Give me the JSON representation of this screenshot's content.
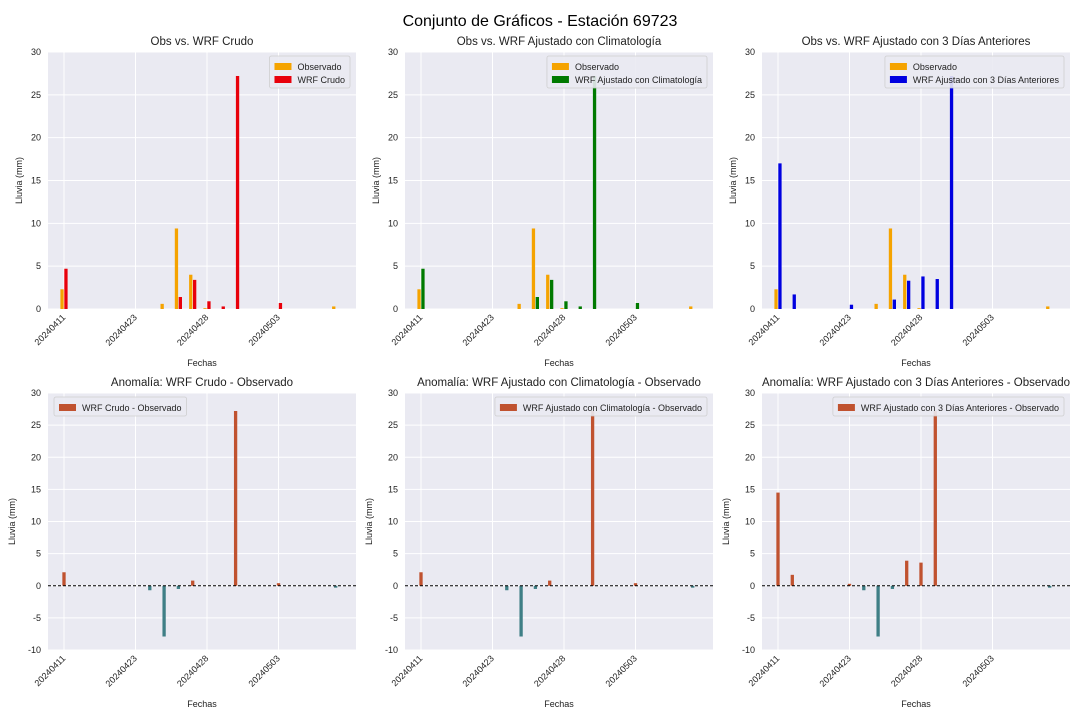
{
  "suptitle": "Conjunto de Gráficos - Estación 69723",
  "colors": {
    "observado": "#f5a300",
    "wrf_crudo": "#e8000b",
    "wrf_clim": "#007a00",
    "wrf_3dias": "#0000e0",
    "anom_pos": "#c0522f",
    "anom_neg": "#3f7f86",
    "axes_bg": "#eaeaf2",
    "grid": "#ffffff"
  },
  "chart_data": [
    {
      "type": "bar",
      "title": "Obs vs. WRF Crudo",
      "xlabel": "Fechas",
      "ylabel": "Lluvia (mm)",
      "ylim": [
        0,
        30
      ],
      "yticks": [
        0,
        5,
        10,
        15,
        20,
        25,
        30
      ],
      "xticks": [
        "20240411",
        "20240423",
        "20240428",
        "20240503"
      ],
      "legend_position": "upper-right",
      "series": [
        {
          "name": "Observado",
          "color_key": "observado",
          "points": [
            {
              "day": 0,
              "value": 2.3
            },
            {
              "day": 7,
              "value": 0.6
            },
            {
              "day": 8,
              "value": 9.4
            },
            {
              "day": 9,
              "value": 4.0
            },
            {
              "day": 10,
              "value": 0.1
            },
            {
              "day": 19,
              "value": 0.3
            }
          ]
        },
        {
          "name": "WRF Crudo",
          "color_key": "wrf_crudo",
          "points": [
            {
              "day": 0,
              "value": 4.7
            },
            {
              "day": 8,
              "value": 1.4
            },
            {
              "day": 9,
              "value": 3.4
            },
            {
              "day": 10,
              "value": 0.9
            },
            {
              "day": 11,
              "value": 0.3
            },
            {
              "day": 12,
              "value": 27.2
            },
            {
              "day": 15,
              "value": 0.7
            }
          ]
        }
      ]
    },
    {
      "type": "bar",
      "title": "Obs vs. WRF Ajustado con Climatología",
      "xlabel": "Fechas",
      "ylabel": "Lluvia (mm)",
      "ylim": [
        0,
        30
      ],
      "yticks": [
        0,
        5,
        10,
        15,
        20,
        25,
        30
      ],
      "xticks": [
        "20240411",
        "20240423",
        "20240428",
        "20240503"
      ],
      "legend_position": "upper-right",
      "series": [
        {
          "name": "Observado",
          "color_key": "observado",
          "points": [
            {
              "day": 0,
              "value": 2.3
            },
            {
              "day": 7,
              "value": 0.6
            },
            {
              "day": 8,
              "value": 9.4
            },
            {
              "day": 9,
              "value": 4.0
            },
            {
              "day": 10,
              "value": 0.1
            },
            {
              "day": 19,
              "value": 0.3
            }
          ]
        },
        {
          "name": "WRF Ajustado con Climatología",
          "color_key": "wrf_clim",
          "points": [
            {
              "day": 0,
              "value": 4.7
            },
            {
              "day": 8,
              "value": 1.4
            },
            {
              "day": 9,
              "value": 3.4
            },
            {
              "day": 10,
              "value": 0.9
            },
            {
              "day": 11,
              "value": 0.3
            },
            {
              "day": 12,
              "value": 27.2
            },
            {
              "day": 15,
              "value": 0.7
            }
          ]
        }
      ]
    },
    {
      "type": "bar",
      "title": "Obs vs. WRF Ajustado con 3 Días Anteriores",
      "xlabel": "Fechas",
      "ylabel": "Lluvia (mm)",
      "ylim": [
        0,
        30
      ],
      "yticks": [
        0,
        5,
        10,
        15,
        20,
        25,
        30
      ],
      "xticks": [
        "20240411",
        "20240423",
        "20240428",
        "20240503"
      ],
      "legend_position": "upper-right",
      "series": [
        {
          "name": "Observado",
          "color_key": "observado",
          "points": [
            {
              "day": 0,
              "value": 2.3
            },
            {
              "day": 7,
              "value": 0.6
            },
            {
              "day": 8,
              "value": 9.4
            },
            {
              "day": 9,
              "value": 4.0
            },
            {
              "day": 10,
              "value": 0.1
            },
            {
              "day": 19,
              "value": 0.3
            }
          ]
        },
        {
          "name": "WRF Ajustado con 3 Días Anteriores",
          "color_key": "wrf_3dias",
          "points": [
            {
              "day": 0,
              "value": 17.0
            },
            {
              "day": 1,
              "value": 1.7
            },
            {
              "day": 5,
              "value": 0.5
            },
            {
              "day": 8,
              "value": 1.1
            },
            {
              "day": 9,
              "value": 3.3
            },
            {
              "day": 10,
              "value": 3.8
            },
            {
              "day": 11,
              "value": 3.5
            },
            {
              "day": 12,
              "value": 27.2
            }
          ]
        }
      ]
    },
    {
      "type": "bar",
      "title": "Anomalía: WRF Crudo - Observado",
      "xlabel": "Fechas",
      "ylabel": "Lluvia (mm)",
      "ylim": [
        -10,
        30
      ],
      "yticks": [
        -10,
        -5,
        0,
        5,
        10,
        15,
        20,
        25,
        30
      ],
      "xticks": [
        "20240411",
        "20240423",
        "20240428",
        "20240503"
      ],
      "legend_position": "upper-left",
      "zero_line": true,
      "series": [
        {
          "name": "WRF Crudo - Observado",
          "color_key": "anom_pos",
          "points": [
            {
              "day": 0,
              "value": 2.1
            },
            {
              "day": 6,
              "value": -0.7
            },
            {
              "day": 7,
              "value": -7.9
            },
            {
              "day": 8,
              "value": -0.5
            },
            {
              "day": 9,
              "value": 0.8
            },
            {
              "day": 12,
              "value": 27.2
            },
            {
              "day": 15,
              "value": 0.4
            },
            {
              "day": 19,
              "value": -0.3
            }
          ]
        }
      ]
    },
    {
      "type": "bar",
      "title": "Anomalía: WRF Ajustado con Climatología - Observado",
      "xlabel": "Fechas",
      "ylabel": "Lluvia (mm)",
      "ylim": [
        -10,
        30
      ],
      "yticks": [
        -10,
        -5,
        0,
        5,
        10,
        15,
        20,
        25,
        30
      ],
      "xticks": [
        "20240411",
        "20240423",
        "20240428",
        "20240503"
      ],
      "legend_position": "upper-right",
      "zero_line": true,
      "series": [
        {
          "name": "WRF Ajustado con Climatología - Observado",
          "color_key": "anom_pos",
          "points": [
            {
              "day": 0,
              "value": 2.1
            },
            {
              "day": 6,
              "value": -0.7
            },
            {
              "day": 7,
              "value": -7.9
            },
            {
              "day": 8,
              "value": -0.5
            },
            {
              "day": 9,
              "value": 0.8
            },
            {
              "day": 12,
              "value": 27.2
            },
            {
              "day": 15,
              "value": 0.4
            },
            {
              "day": 19,
              "value": -0.3
            }
          ]
        }
      ]
    },
    {
      "type": "bar",
      "title": "Anomalía: WRF Ajustado con 3 Días Anteriores - Observado",
      "xlabel": "Fechas",
      "ylabel": "Lluvia (mm)",
      "ylim": [
        -10,
        30
      ],
      "yticks": [
        -10,
        -5,
        0,
        5,
        10,
        15,
        20,
        25,
        30
      ],
      "xticks": [
        "20240411",
        "20240423",
        "20240428",
        "20240503"
      ],
      "legend_position": "upper-right",
      "zero_line": true,
      "series": [
        {
          "name": "WRF Ajustado con 3 Días Anteriores - Observado",
          "color_key": "anom_pos",
          "points": [
            {
              "day": 0,
              "value": 14.5
            },
            {
              "day": 1,
              "value": 1.7
            },
            {
              "day": 5,
              "value": 0.3
            },
            {
              "day": 6,
              "value": -0.7
            },
            {
              "day": 7,
              "value": -7.9
            },
            {
              "day": 8,
              "value": -0.5
            },
            {
              "day": 9,
              "value": 3.9
            },
            {
              "day": 10,
              "value": 3.6
            },
            {
              "day": 11,
              "value": 27.2
            },
            {
              "day": 19,
              "value": -0.3
            }
          ]
        }
      ]
    }
  ]
}
